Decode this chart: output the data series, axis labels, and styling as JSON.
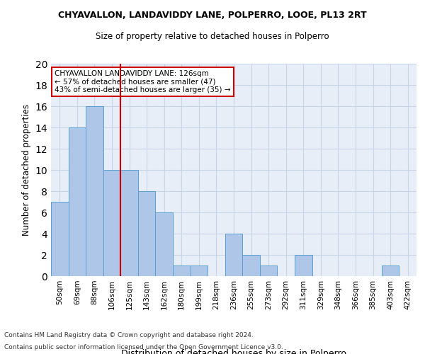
{
  "title": "CHYAVALLON, LANDAVIDDY LANE, POLPERRO, LOOE, PL13 2RT",
  "subtitle": "Size of property relative to detached houses in Polperro",
  "xlabel": "Distribution of detached houses by size in Polperro",
  "ylabel": "Number of detached properties",
  "bin_labels": [
    "50sqm",
    "69sqm",
    "88sqm",
    "106sqm",
    "125sqm",
    "143sqm",
    "162sqm",
    "180sqm",
    "199sqm",
    "218sqm",
    "236sqm",
    "255sqm",
    "273sqm",
    "292sqm",
    "311sqm",
    "329sqm",
    "348sqm",
    "366sqm",
    "385sqm",
    "403sqm",
    "422sqm"
  ],
  "bar_values": [
    7,
    14,
    16,
    10,
    10,
    8,
    6,
    1,
    1,
    0,
    4,
    2,
    1,
    0,
    2,
    0,
    0,
    0,
    0,
    1,
    0
  ],
  "bar_color": "#aec6e8",
  "bar_edgecolor": "#5a9fd4",
  "vline_index": 4,
  "vline_color": "#cc0000",
  "annotation_text": "CHYAVALLON LANDAVIDDY LANE: 126sqm\n← 57% of detached houses are smaller (47)\n43% of semi-detached houses are larger (35) →",
  "annotation_box_color": "#ffffff",
  "annotation_box_edgecolor": "#cc0000",
  "ylim": [
    0,
    20
  ],
  "yticks": [
    0,
    2,
    4,
    6,
    8,
    10,
    12,
    14,
    16,
    18,
    20
  ],
  "grid_color": "#c8d4e8",
  "bg_color": "#e8eef8",
  "footer1": "Contains HM Land Registry data © Crown copyright and database right 2024.",
  "footer2": "Contains public sector information licensed under the Open Government Licence v3.0."
}
